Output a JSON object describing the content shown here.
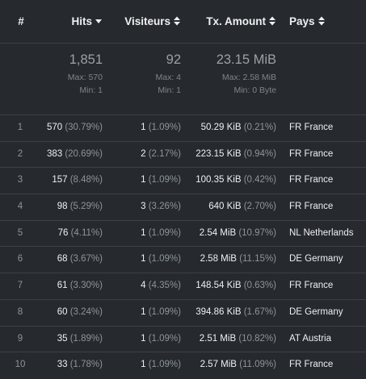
{
  "header": {
    "num": "#",
    "hits": "Hits",
    "visitors": "Visiteurs",
    "tx": "Tx. Amount",
    "country": "Pays"
  },
  "summary": {
    "hits_total": "1,851",
    "hits_max": "Max: 570",
    "hits_min": "Min: 1",
    "visitors_total": "92",
    "visitors_max": "Max: 4",
    "visitors_min": "Min: 1",
    "tx_total": "23.15 MiB",
    "tx_max": "Max: 2.58 MiB",
    "tx_min": "Min: 0 Byte"
  },
  "rows": [
    {
      "num": "1",
      "hits": "570",
      "hits_pct": "(30.79%)",
      "visitors": "1",
      "visitors_pct": "(1.09%)",
      "tx": "50.29 KiB",
      "tx_pct": "(0.21%)",
      "country": "FR France"
    },
    {
      "num": "2",
      "hits": "383",
      "hits_pct": "(20.69%)",
      "visitors": "2",
      "visitors_pct": "(2.17%)",
      "tx": "223.15 KiB",
      "tx_pct": "(0.94%)",
      "country": "FR France"
    },
    {
      "num": "3",
      "hits": "157",
      "hits_pct": "(8.48%)",
      "visitors": "1",
      "visitors_pct": "(1.09%)",
      "tx": "100.35 KiB",
      "tx_pct": "(0.42%)",
      "country": "FR France"
    },
    {
      "num": "4",
      "hits": "98",
      "hits_pct": "(5.29%)",
      "visitors": "3",
      "visitors_pct": "(3.26%)",
      "tx": "640 KiB",
      "tx_pct": "(2.70%)",
      "country": "FR France"
    },
    {
      "num": "5",
      "hits": "76",
      "hits_pct": "(4.11%)",
      "visitors": "1",
      "visitors_pct": "(1.09%)",
      "tx": "2.54 MiB",
      "tx_pct": "(10.97%)",
      "country": "NL Netherlands"
    },
    {
      "num": "6",
      "hits": "68",
      "hits_pct": "(3.67%)",
      "visitors": "1",
      "visitors_pct": "(1.09%)",
      "tx": "2.58 MiB",
      "tx_pct": "(11.15%)",
      "country": "DE Germany"
    },
    {
      "num": "7",
      "hits": "61",
      "hits_pct": "(3.30%)",
      "visitors": "4",
      "visitors_pct": "(4.35%)",
      "tx": "148.54 KiB",
      "tx_pct": "(0.63%)",
      "country": "FR France"
    },
    {
      "num": "8",
      "hits": "60",
      "hits_pct": "(3.24%)",
      "visitors": "1",
      "visitors_pct": "(1.09%)",
      "tx": "394.86 KiB",
      "tx_pct": "(1.67%)",
      "country": "DE Germany"
    },
    {
      "num": "9",
      "hits": "35",
      "hits_pct": "(1.89%)",
      "visitors": "1",
      "visitors_pct": "(1.09%)",
      "tx": "2.51 MiB",
      "tx_pct": "(10.82%)",
      "country": "AT Austria"
    },
    {
      "num": "10",
      "hits": "33",
      "hits_pct": "(1.78%)",
      "visitors": "1",
      "visitors_pct": "(1.09%)",
      "tx": "2.57 MiB",
      "tx_pct": "(11.09%)",
      "country": "FR France"
    }
  ],
  "icons": {
    "hits_sort": "sort-desc-icon",
    "visitors_sort": "sort-both-icon",
    "tx_sort": "sort-both-icon",
    "country_sort": "sort-both-icon"
  }
}
